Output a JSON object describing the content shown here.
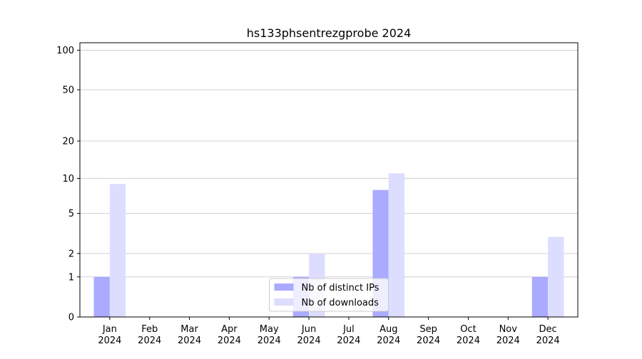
{
  "chart_data": {
    "type": "bar",
    "title": "hs133phsentrezgprobe 2024",
    "categories": [
      "Jan 2024",
      "Feb 2024",
      "Mar 2024",
      "Apr 2024",
      "May 2024",
      "Jun 2024",
      "Jul 2024",
      "Aug 2024",
      "Sep 2024",
      "Oct 2024",
      "Nov 2024",
      "Dec 2024"
    ],
    "series": [
      {
        "name": "Nb of distinct IPs",
        "color": "#aaaaff",
        "values": [
          1,
          0,
          0,
          0,
          0,
          1,
          0,
          8,
          0,
          0,
          0,
          1
        ]
      },
      {
        "name": "Nb of downloads",
        "color": "#ddddff",
        "values": [
          9,
          0,
          0,
          0,
          0,
          2,
          0,
          11,
          0,
          0,
          0,
          3
        ]
      }
    ],
    "yscale": "log1p",
    "ylim": [
      0,
      114
    ],
    "yticks": [
      0,
      1,
      2,
      5,
      10,
      20,
      50,
      100
    ],
    "grid": true,
    "legend": "lower center"
  }
}
